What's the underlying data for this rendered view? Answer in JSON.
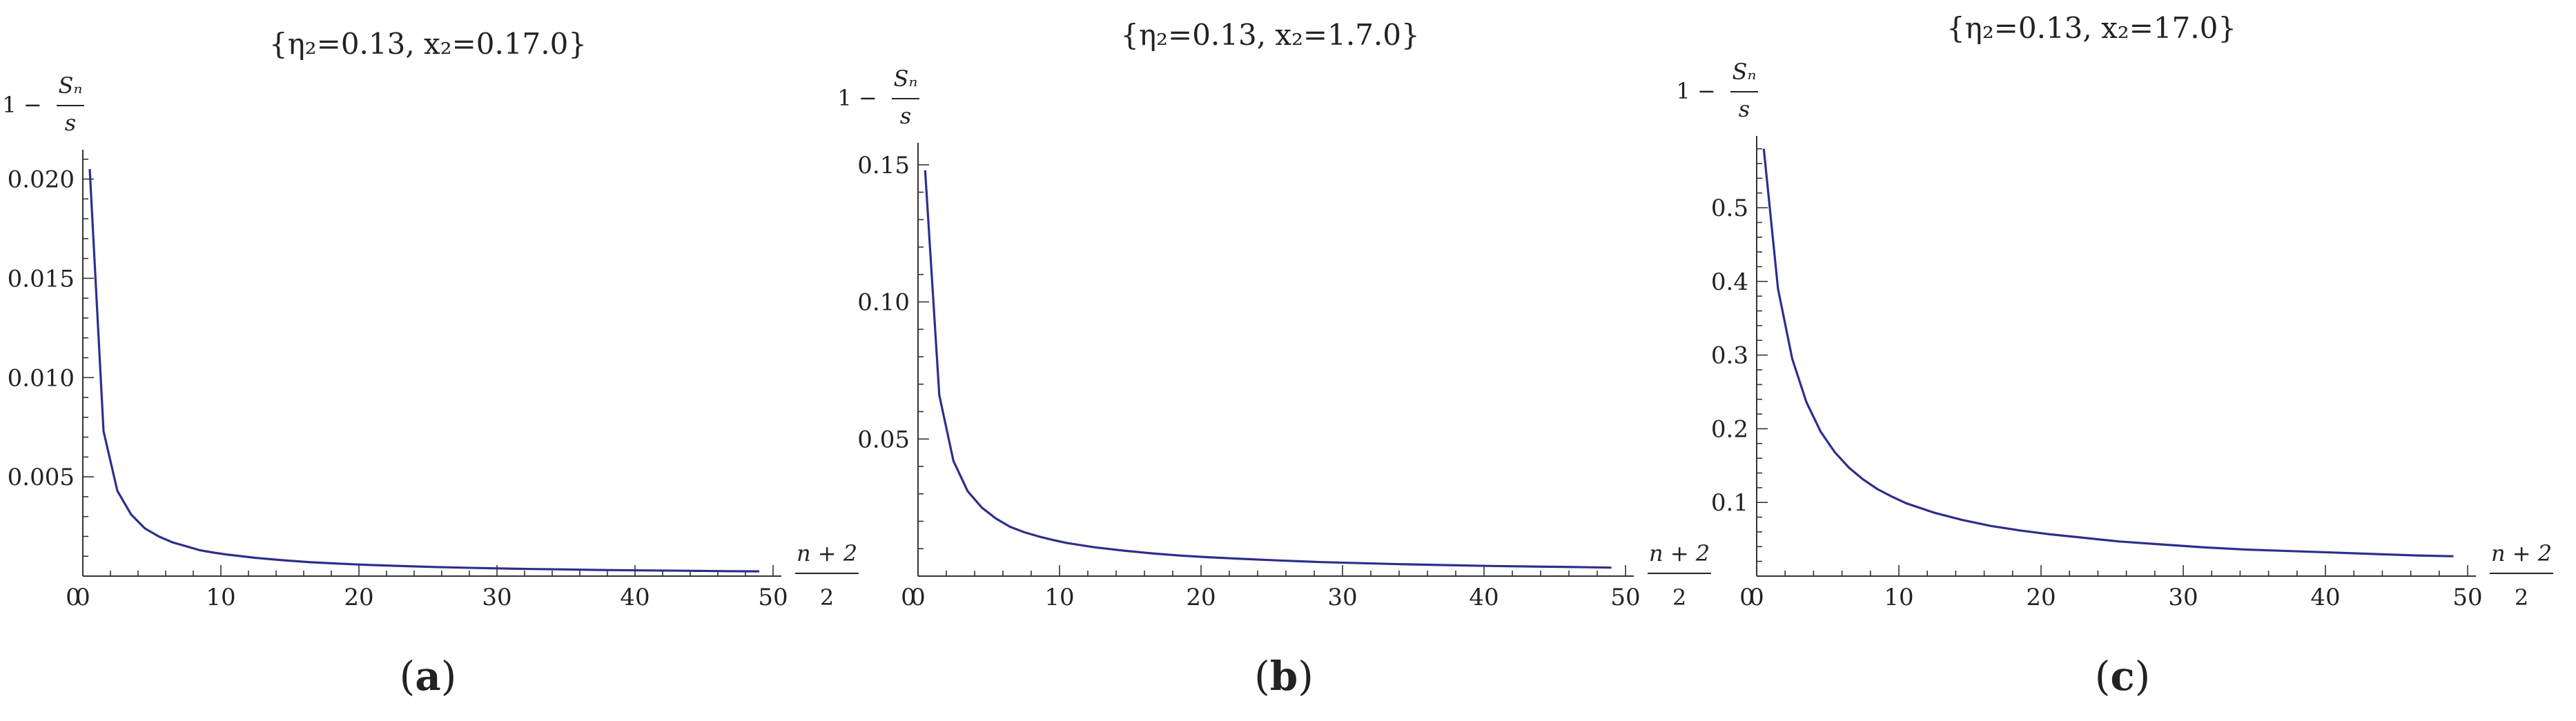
{
  "colors": {
    "series": "#2e2e8c",
    "axis": "#333333",
    "text": "#222222"
  },
  "chart_data": [
    {
      "type": "line",
      "panel_label": "a",
      "title": "{η₂=0.13, x₂=0.17.0}",
      "xlabel": {
        "numerator": "n + 2",
        "denominator": "2"
      },
      "ylabel": {
        "prefix": "1 −",
        "numerator": "Sₙ",
        "denominator": "s"
      },
      "xlim": [
        0,
        50
      ],
      "ylim": [
        0,
        0.0212
      ],
      "x_ticks": [
        0,
        10,
        20,
        30,
        40,
        50
      ],
      "x_tick_labels": [
        "0",
        "10",
        "20",
        "30",
        "40",
        "50"
      ],
      "y_ticks": [
        0.005,
        0.01,
        0.015,
        0.02
      ],
      "y_tick_labels": [
        "0.005",
        "0.010",
        "0.015",
        "0.020"
      ],
      "series": [
        {
          "x": [
            0.5,
            1.5,
            2.5,
            3.5,
            4.5,
            5.5,
            6.5,
            7.5,
            8.5,
            9.5,
            10.5,
            12.5,
            14.5,
            16.5,
            18.5,
            20.5,
            22.5,
            25.5,
            28.5,
            31.5,
            34.5,
            37.5,
            40.5,
            43.5,
            46.5,
            49
          ],
          "y": [
            0.0205,
            0.0073,
            0.0043,
            0.0031,
            0.0024,
            0.002,
            0.0017,
            0.0015,
            0.0013,
            0.00118,
            0.00108,
            0.00092,
            0.0008,
            0.0007,
            0.00063,
            0.00057,
            0.00052,
            0.00046,
            0.00041,
            0.00037,
            0.00034,
            0.00031,
            0.00029,
            0.00027,
            0.00025,
            0.00024
          ]
        }
      ]
    },
    {
      "type": "line",
      "panel_label": "b",
      "title": "{η₂=0.13, x₂=1.7.0}",
      "xlabel": {
        "numerator": "n + 2",
        "denominator": "2"
      },
      "ylabel": {
        "prefix": "1 −",
        "numerator": "Sₙ",
        "denominator": "s"
      },
      "xlim": [
        0,
        50
      ],
      "ylim": [
        0,
        0.156
      ],
      "x_ticks": [
        0,
        10,
        20,
        30,
        40,
        50
      ],
      "x_tick_labels": [
        "0",
        "10",
        "20",
        "30",
        "40",
        "50"
      ],
      "y_ticks": [
        0.05,
        0.1,
        0.15
      ],
      "y_tick_labels": [
        "0.05",
        "0.10",
        "0.15"
      ],
      "series": [
        {
          "x": [
            0.5,
            1.5,
            2.5,
            3.5,
            4.5,
            5.5,
            6.5,
            7.5,
            8.5,
            9.5,
            10.5,
            12.5,
            14.5,
            16.5,
            18.5,
            20.5,
            22.5,
            25.5,
            28.5,
            31.5,
            34.5,
            37.5,
            40.5,
            43.5,
            46.5,
            49
          ],
          "y": [
            0.148,
            0.066,
            0.042,
            0.031,
            0.025,
            0.021,
            0.018,
            0.016,
            0.0145,
            0.0132,
            0.0121,
            0.0105,
            0.0093,
            0.0083,
            0.0075,
            0.0069,
            0.0064,
            0.0057,
            0.0051,
            0.0047,
            0.0043,
            0.004,
            0.0037,
            0.0035,
            0.0033,
            0.0031
          ]
        }
      ]
    },
    {
      "type": "line",
      "panel_label": "c",
      "title": "{η₂=0.13, x₂=17.0}",
      "xlabel": {
        "numerator": "n + 2",
        "denominator": "2"
      },
      "ylabel": {
        "prefix": "1 −",
        "numerator": "Sₙ",
        "denominator": "s"
      },
      "xlim": [
        0,
        50
      ],
      "ylim": [
        0,
        0.59
      ],
      "x_ticks": [
        0,
        10,
        20,
        30,
        40,
        50
      ],
      "x_tick_labels": [
        "0",
        "10",
        "20",
        "30",
        "40",
        "50"
      ],
      "y_ticks": [
        0.1,
        0.2,
        0.3,
        0.4,
        0.5
      ],
      "y_tick_labels": [
        "0.1",
        "0.2",
        "0.3",
        "0.4",
        "0.5"
      ],
      "series": [
        {
          "x": [
            0.5,
            1.5,
            2.5,
            3.5,
            4.5,
            5.5,
            6.5,
            7.5,
            8.5,
            9.5,
            10.5,
            12.5,
            14.5,
            16.5,
            18.5,
            20.5,
            22.5,
            25.5,
            28.5,
            31.5,
            34.5,
            37.5,
            40.5,
            43.5,
            46.5,
            49
          ],
          "y": [
            0.58,
            0.39,
            0.295,
            0.236,
            0.196,
            0.168,
            0.147,
            0.131,
            0.118,
            0.108,
            0.099,
            0.086,
            0.076,
            0.068,
            0.062,
            0.057,
            0.053,
            0.047,
            0.043,
            0.039,
            0.036,
            0.034,
            0.032,
            0.03,
            0.028,
            0.027
          ]
        }
      ]
    }
  ]
}
